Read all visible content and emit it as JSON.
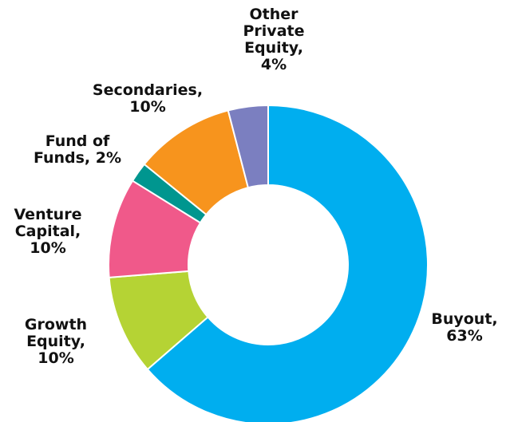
{
  "chart_data": {
    "type": "donut",
    "categories": [
      "Buyout,",
      "Growth Equity,",
      "Venture Capital,",
      "Fund of Funds,",
      "Secondaries,",
      "Other Private Equity,"
    ],
    "values": [
      63,
      10,
      10,
      2,
      10,
      4
    ],
    "value_labels": [
      "63%",
      "10%",
      "10%",
      "2%",
      "10%",
      "4%"
    ],
    "colors": [
      "#00aeef",
      "#b5d334",
      "#f0598a",
      "#00968f",
      "#f7941d",
      "#7b7fc0"
    ]
  }
}
